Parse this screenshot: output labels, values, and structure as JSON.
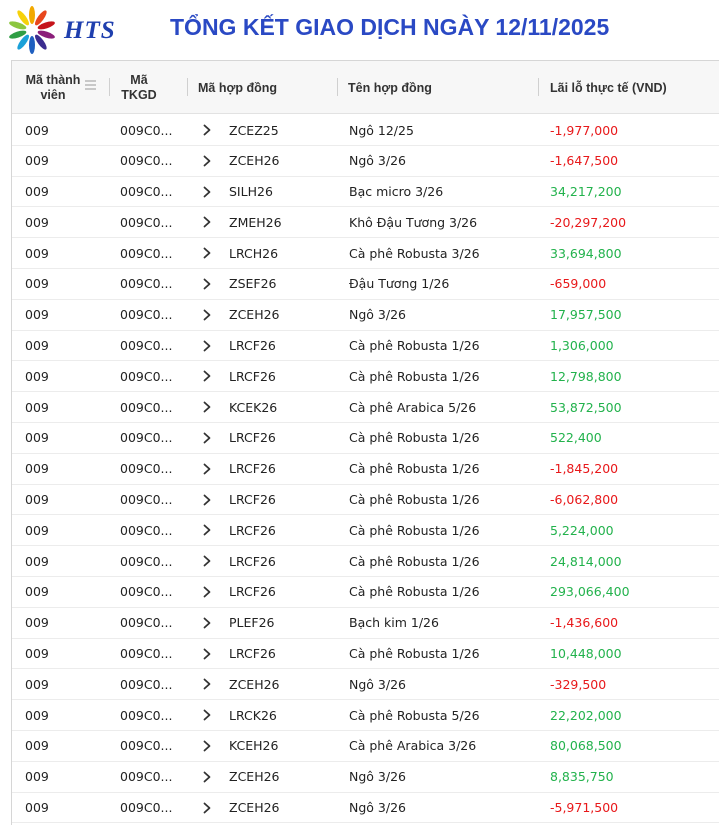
{
  "brand": {
    "logo_text": "HTS"
  },
  "title": "TỔNG KẾT GIAO DỊCH NGÀY 12/11/2025",
  "colors": {
    "title": "#2a49c4",
    "negative": "#e8181a",
    "positive": "#22b24c"
  },
  "table": {
    "columns": {
      "member": "Mã thành viên",
      "member_line1": "Mã thành",
      "member_line2": "viên",
      "account_line1": "Mã",
      "account_line2": "TKGD",
      "contract_code": "Mã hợp đồng",
      "contract_name": "Tên hợp đồng",
      "pnl": "Lãi lỗ thực tế (VND)"
    },
    "rows": [
      {
        "member": "009",
        "account": "009C0...",
        "code": "ZCEZ25",
        "name": "Ngô 12/25",
        "pnl": "-1,977,000",
        "sign": "neg"
      },
      {
        "member": "009",
        "account": "009C0...",
        "code": "ZCEH26",
        "name": "Ngô 3/26",
        "pnl": "-1,647,500",
        "sign": "neg"
      },
      {
        "member": "009",
        "account": "009C0...",
        "code": "SILH26",
        "name": "Bạc micro 3/26",
        "pnl": "34,217,200",
        "sign": "pos"
      },
      {
        "member": "009",
        "account": "009C0...",
        "code": "ZMEH26",
        "name": "Khô Đậu Tương 3/26",
        "pnl": "-20,297,200",
        "sign": "neg"
      },
      {
        "member": "009",
        "account": "009C0...",
        "code": "LRCH26",
        "name": "Cà phê Robusta 3/26",
        "pnl": "33,694,800",
        "sign": "pos"
      },
      {
        "member": "009",
        "account": "009C0...",
        "code": "ZSEF26",
        "name": "Đậu Tương 1/26",
        "pnl": "-659,000",
        "sign": "neg"
      },
      {
        "member": "009",
        "account": "009C0...",
        "code": "ZCEH26",
        "name": "Ngô 3/26",
        "pnl": "17,957,500",
        "sign": "pos"
      },
      {
        "member": "009",
        "account": "009C0...",
        "code": "LRCF26",
        "name": "Cà phê Robusta 1/26",
        "pnl": "1,306,000",
        "sign": "pos"
      },
      {
        "member": "009",
        "account": "009C0...",
        "code": "LRCF26",
        "name": "Cà phê Robusta 1/26",
        "pnl": "12,798,800",
        "sign": "pos"
      },
      {
        "member": "009",
        "account": "009C0...",
        "code": "KCEK26",
        "name": "Cà phê Arabica 5/26",
        "pnl": "53,872,500",
        "sign": "pos"
      },
      {
        "member": "009",
        "account": "009C0...",
        "code": "LRCF26",
        "name": "Cà phê Robusta 1/26",
        "pnl": "522,400",
        "sign": "pos"
      },
      {
        "member": "009",
        "account": "009C0...",
        "code": "LRCF26",
        "name": "Cà phê Robusta 1/26",
        "pnl": "-1,845,200",
        "sign": "neg"
      },
      {
        "member": "009",
        "account": "009C0...",
        "code": "LRCF26",
        "name": "Cà phê Robusta 1/26",
        "pnl": "-6,062,800",
        "sign": "neg"
      },
      {
        "member": "009",
        "account": "009C0...",
        "code": "LRCF26",
        "name": "Cà phê Robusta 1/26",
        "pnl": "5,224,000",
        "sign": "pos"
      },
      {
        "member": "009",
        "account": "009C0...",
        "code": "LRCF26",
        "name": "Cà phê Robusta 1/26",
        "pnl": "24,814,000",
        "sign": "pos"
      },
      {
        "member": "009",
        "account": "009C0...",
        "code": "LRCF26",
        "name": "Cà phê Robusta 1/26",
        "pnl": "293,066,400",
        "sign": "pos"
      },
      {
        "member": "009",
        "account": "009C0...",
        "code": "PLEF26",
        "name": "Bạch kim 1/26",
        "pnl": "-1,436,600",
        "sign": "neg"
      },
      {
        "member": "009",
        "account": "009C0...",
        "code": "LRCF26",
        "name": "Cà phê Robusta 1/26",
        "pnl": "10,448,000",
        "sign": "pos"
      },
      {
        "member": "009",
        "account": "009C0...",
        "code": "ZCEH26",
        "name": "Ngô 3/26",
        "pnl": "-329,500",
        "sign": "neg"
      },
      {
        "member": "009",
        "account": "009C0...",
        "code": "LRCK26",
        "name": "Cà phê Robusta 5/26",
        "pnl": "22,202,000",
        "sign": "pos"
      },
      {
        "member": "009",
        "account": "009C0...",
        "code": "KCEH26",
        "name": "Cà phê Arabica 3/26",
        "pnl": "80,068,500",
        "sign": "pos"
      },
      {
        "member": "009",
        "account": "009C0...",
        "code": "ZCEH26",
        "name": "Ngô 3/26",
        "pnl": "8,835,750",
        "sign": "pos"
      },
      {
        "member": "009",
        "account": "009C0...",
        "code": "ZCEH26",
        "name": "Ngô 3/26",
        "pnl": "-5,971,500",
        "sign": "neg"
      }
    ]
  },
  "icons": {
    "logo": "sunburst-logo-icon",
    "expand": "chevron-right-icon",
    "column_menu": "menu-icon"
  }
}
